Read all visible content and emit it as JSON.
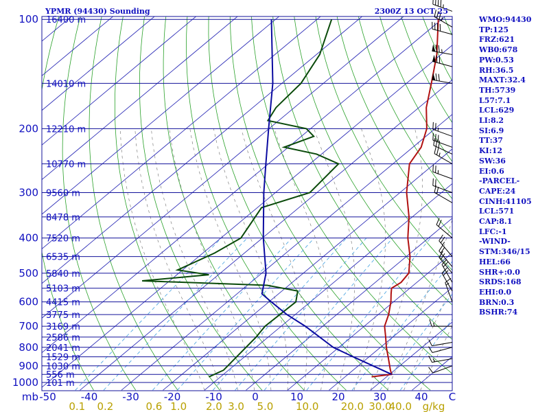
{
  "header": {
    "station": "YPMR (94430) Sounding",
    "time": "2300Z 13 OCT 25"
  },
  "chart_data": {
    "type": "line",
    "title": "YPMR (94430) Sounding",
    "subtitle": "2300Z 13 OCT 25",
    "xlabel": "",
    "ylabel": "mb",
    "x_unit_label": "C",
    "mixing_ratio_unit": "g/kg",
    "pressure_levels": [
      100,
      200,
      300,
      400,
      500,
      600,
      700,
      800,
      900,
      1000
    ],
    "pressure_tick_labels": [
      "100",
      "200",
      "300",
      "400",
      "500",
      "600",
      "700",
      "800",
      "900",
      "1000"
    ],
    "pressure_axis_label": "mb",
    "temperature_ticks": [
      -50,
      -40,
      -30,
      -20,
      -10,
      0,
      10,
      20,
      30,
      40
    ],
    "temperature_tick_labels": [
      "-50",
      "-40",
      "-30",
      "-20",
      "-10",
      "0",
      "10",
      "20",
      "30",
      "40"
    ],
    "mixing_ratio_lines": [
      {
        "label": "0.1",
        "value": 0.1
      },
      {
        "label": "0.2",
        "value": 0.2
      },
      {
        "label": "0.6",
        "value": 0.6
      },
      {
        "label": "1.0",
        "value": 1.0
      },
      {
        "label": "2.0",
        "value": 2.0
      },
      {
        "label": "3.0",
        "value": 3.0
      },
      {
        "label": "5.0",
        "value": 5.0
      },
      {
        "label": "10.0",
        "value": 10.0
      },
      {
        "label": "20.0",
        "value": 20.0
      },
      {
        "label": "30.0",
        "value": 30.0
      },
      {
        "label": "40.0",
        "value": 40.0
      }
    ],
    "height_labels": [
      {
        "p": 100,
        "label": "16400 m"
      },
      {
        "p": 150,
        "label": "14010 m"
      },
      {
        "p": 200,
        "label": "12210 m"
      },
      {
        "p": 250,
        "label": "10770 m"
      },
      {
        "p": 300,
        "label": "9560 m"
      },
      {
        "p": 350,
        "label": "8478 m"
      },
      {
        "p": 400,
        "label": "7520 m"
      },
      {
        "p": 450,
        "label": "6535 m"
      },
      {
        "p": 500,
        "label": "5840 m"
      },
      {
        "p": 550,
        "label": "5103 m"
      },
      {
        "p": 600,
        "label": "4415 m"
      },
      {
        "p": 650,
        "label": "3775 m"
      },
      {
        "p": 700,
        "label": "3169 m"
      },
      {
        "p": 750,
        "label": "2586 m"
      },
      {
        "p": 800,
        "label": "2041 m"
      },
      {
        "p": 850,
        "label": "1529 m"
      },
      {
        "p": 900,
        "label": "1030 m"
      },
      {
        "p": 950,
        "label": "556 m"
      },
      {
        "p": 1000,
        "label": "101 m"
      }
    ],
    "series": [
      {
        "name": "temperature",
        "color": "#b01010",
        "points": [
          {
            "p": 965,
            "t": 26.4
          },
          {
            "p": 950,
            "t": 30.5
          },
          {
            "p": 925,
            "t": 29.0
          },
          {
            "p": 850,
            "t": 24.6
          },
          {
            "p": 800,
            "t": 21.4
          },
          {
            "p": 750,
            "t": 18.3
          },
          {
            "p": 700,
            "t": 14.9
          },
          {
            "p": 650,
            "t": 12.5
          },
          {
            "p": 600,
            "t": 9.4
          },
          {
            "p": 570,
            "t": 7.1
          },
          {
            "p": 550,
            "t": 5.6
          },
          {
            "p": 530,
            "t": 6.2
          },
          {
            "p": 500,
            "t": 5.4
          },
          {
            "p": 450,
            "t": 0.9
          },
          {
            "p": 400,
            "t": -5.0
          },
          {
            "p": 350,
            "t": -10.8
          },
          {
            "p": 300,
            "t": -18.4
          },
          {
            "p": 250,
            "t": -26.0
          },
          {
            "p": 225,
            "t": -28.0
          },
          {
            "p": 200,
            "t": -32.0
          },
          {
            "p": 175,
            "t": -38.2
          },
          {
            "p": 150,
            "t": -44.0
          },
          {
            "p": 125,
            "t": -51.0
          },
          {
            "p": 100,
            "t": -60.8
          }
        ]
      },
      {
        "name": "dewpoint",
        "color": "#0a4a0a",
        "points": [
          {
            "p": 965,
            "t": -12.8
          },
          {
            "p": 925,
            "t": -11.2
          },
          {
            "p": 850,
            "t": -11.9
          },
          {
            "p": 750,
            "t": -12.9
          },
          {
            "p": 700,
            "t": -13.9
          },
          {
            "p": 600,
            "t": -13.5
          },
          {
            "p": 560,
            "t": -16.2
          },
          {
            "p": 540,
            "t": -25.2
          },
          {
            "p": 525,
            "t": -56.6
          },
          {
            "p": 505,
            "t": -42.3
          },
          {
            "p": 490,
            "t": -51.2
          },
          {
            "p": 440,
            "t": -47.2
          },
          {
            "p": 400,
            "t": -45.2
          },
          {
            "p": 330,
            "t": -49.0
          },
          {
            "p": 300,
            "t": -41.7
          },
          {
            "p": 250,
            "t": -43.1
          },
          {
            "p": 235,
            "t": -51.2
          },
          {
            "p": 225,
            "t": -61.0
          },
          {
            "p": 210,
            "t": -57.0
          },
          {
            "p": 200,
            "t": -61.0
          },
          {
            "p": 190,
            "t": -72.6
          },
          {
            "p": 175,
            "t": -74.4
          },
          {
            "p": 150,
            "t": -75.4
          },
          {
            "p": 125,
            "t": -79.2
          },
          {
            "p": 100,
            "t": -86.5
          }
        ]
      },
      {
        "name": "parcel",
        "color": "#0a0aa0",
        "points": [
          {
            "p": 950,
            "t": 30.5
          },
          {
            "p": 850,
            "t": 16.2
          },
          {
            "p": 800,
            "t": 8.6
          },
          {
            "p": 700,
            "t": -4.2
          },
          {
            "p": 650,
            "t": -12.0
          },
          {
            "p": 600,
            "t": -19.4
          },
          {
            "p": 570,
            "t": -24.0
          },
          {
            "p": 500,
            "t": -29.0
          },
          {
            "p": 400,
            "t": -39.8
          },
          {
            "p": 300,
            "t": -52.8
          },
          {
            "p": 250,
            "t": -60.6
          },
          {
            "p": 200,
            "t": -70.1
          },
          {
            "p": 150,
            "t": -82.2
          },
          {
            "p": 100,
            "t": -101.0
          }
        ]
      }
    ],
    "wind_barbs": [
      {
        "p": 95,
        "dir": 290,
        "kt": 45
      },
      {
        "p": 105,
        "dir": 300,
        "kt": 35
      },
      {
        "p": 110,
        "dir": 285,
        "kt": 40
      },
      {
        "p": 125,
        "dir": 280,
        "kt": 75
      },
      {
        "p": 135,
        "dir": 285,
        "kt": 70
      },
      {
        "p": 150,
        "dir": 280,
        "kt": 70
      },
      {
        "p": 210,
        "dir": 290,
        "kt": 25
      },
      {
        "p": 225,
        "dir": 290,
        "kt": 30
      },
      {
        "p": 235,
        "dir": 295,
        "kt": 30
      },
      {
        "p": 250,
        "dir": 300,
        "kt": 25
      },
      {
        "p": 275,
        "dir": 290,
        "kt": 25
      },
      {
        "p": 300,
        "dir": 290,
        "kt": 20
      },
      {
        "p": 320,
        "dir": 300,
        "kt": 20
      },
      {
        "p": 400,
        "dir": 310,
        "kt": 20
      },
      {
        "p": 450,
        "dir": 320,
        "kt": 25
      },
      {
        "p": 480,
        "dir": 320,
        "kt": 20
      },
      {
        "p": 500,
        "dir": 320,
        "kt": 20
      },
      {
        "p": 530,
        "dir": 330,
        "kt": 20
      },
      {
        "p": 560,
        "dir": 330,
        "kt": 20
      },
      {
        "p": 600,
        "dir": 340,
        "kt": 15
      },
      {
        "p": 700,
        "dir": 270,
        "kt": 15
      },
      {
        "p": 775,
        "dir": 260,
        "kt": 10
      },
      {
        "p": 800,
        "dir": 255,
        "kt": 10
      },
      {
        "p": 860,
        "dir": 260,
        "kt": 15
      },
      {
        "p": 900,
        "dir": 250,
        "kt": 10
      }
    ],
    "grid": true,
    "legend": "none"
  },
  "indices": [
    "WMO:94430",
    "TP:125",
    "FRZ:621",
    "WB0:678",
    "PW:0.53",
    "RH:36.5",
    "MAXT:32.4",
    "TH:5739",
    "L57:7.1",
    "LCL:629",
    "LI:8.2",
    "SI:6.9",
    "TT:37",
    "KI:12",
    "SW:36",
    "EI:0.6",
    "-PARCEL-",
    "CAPE:24",
    "CINH:41105",
    "LCL:571",
    "CAP:8.1",
    "LFC:-1",
    "-WIND-",
    "STM:346/15",
    "HEL:66",
    "SHR+:0.0",
    "SRDS:168",
    "EHI:0.0",
    "BRN:0.3",
    "BSHR:74"
  ],
  "colors": {
    "isobar": "#10109a",
    "isotherm": "#3030b8",
    "dry_adiabat": "#28a028",
    "moist_adiabat": "#808080",
    "mixing_ratio": "#40a0e0",
    "label_blue": "#1010c0",
    "mixing_label": "#b8a000",
    "temperature": "#b01010",
    "dewpoint": "#0a4a0a",
    "parcel": "#0a0aa0",
    "wind_barb": "#000000"
  }
}
